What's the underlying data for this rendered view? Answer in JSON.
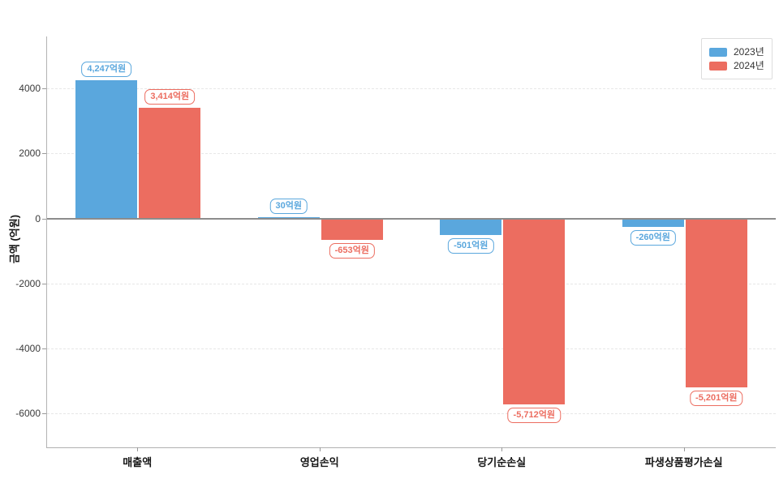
{
  "chart_data": {
    "type": "bar",
    "title": "",
    "xlabel": "",
    "ylabel": "금액 (억원)",
    "categories": [
      "매출액",
      "영업손익",
      "당기순손실",
      "파생상품평가손실"
    ],
    "series": [
      {
        "name": "2023년",
        "key": "y2023",
        "color": "#5aa7dd",
        "values": [
          4247,
          30,
          -501,
          -260
        ],
        "value_labels": [
          "4,247억원",
          "30억원",
          "-501억원",
          "-260억원"
        ]
      },
      {
        "name": "2024년",
        "key": "y2024",
        "color": "#ec6d60",
        "values": [
          3414,
          -653,
          -5712,
          -5201
        ],
        "value_labels": [
          "3,414억원",
          "-653억원",
          "-5,712억원",
          "-5,201억원"
        ]
      }
    ],
    "yticks": [
      4000,
      2000,
      0,
      -2000,
      -4000,
      -6000
    ],
    "ytick_labels": [
      "4000",
      "2000",
      "0",
      "-2000",
      "-4000",
      "-6000"
    ],
    "ylim": [
      -7045,
      5600
    ],
    "grid": "horizontal-dashed",
    "legend_position": "top-right",
    "zero_line_color": "#8c8c8c"
  }
}
